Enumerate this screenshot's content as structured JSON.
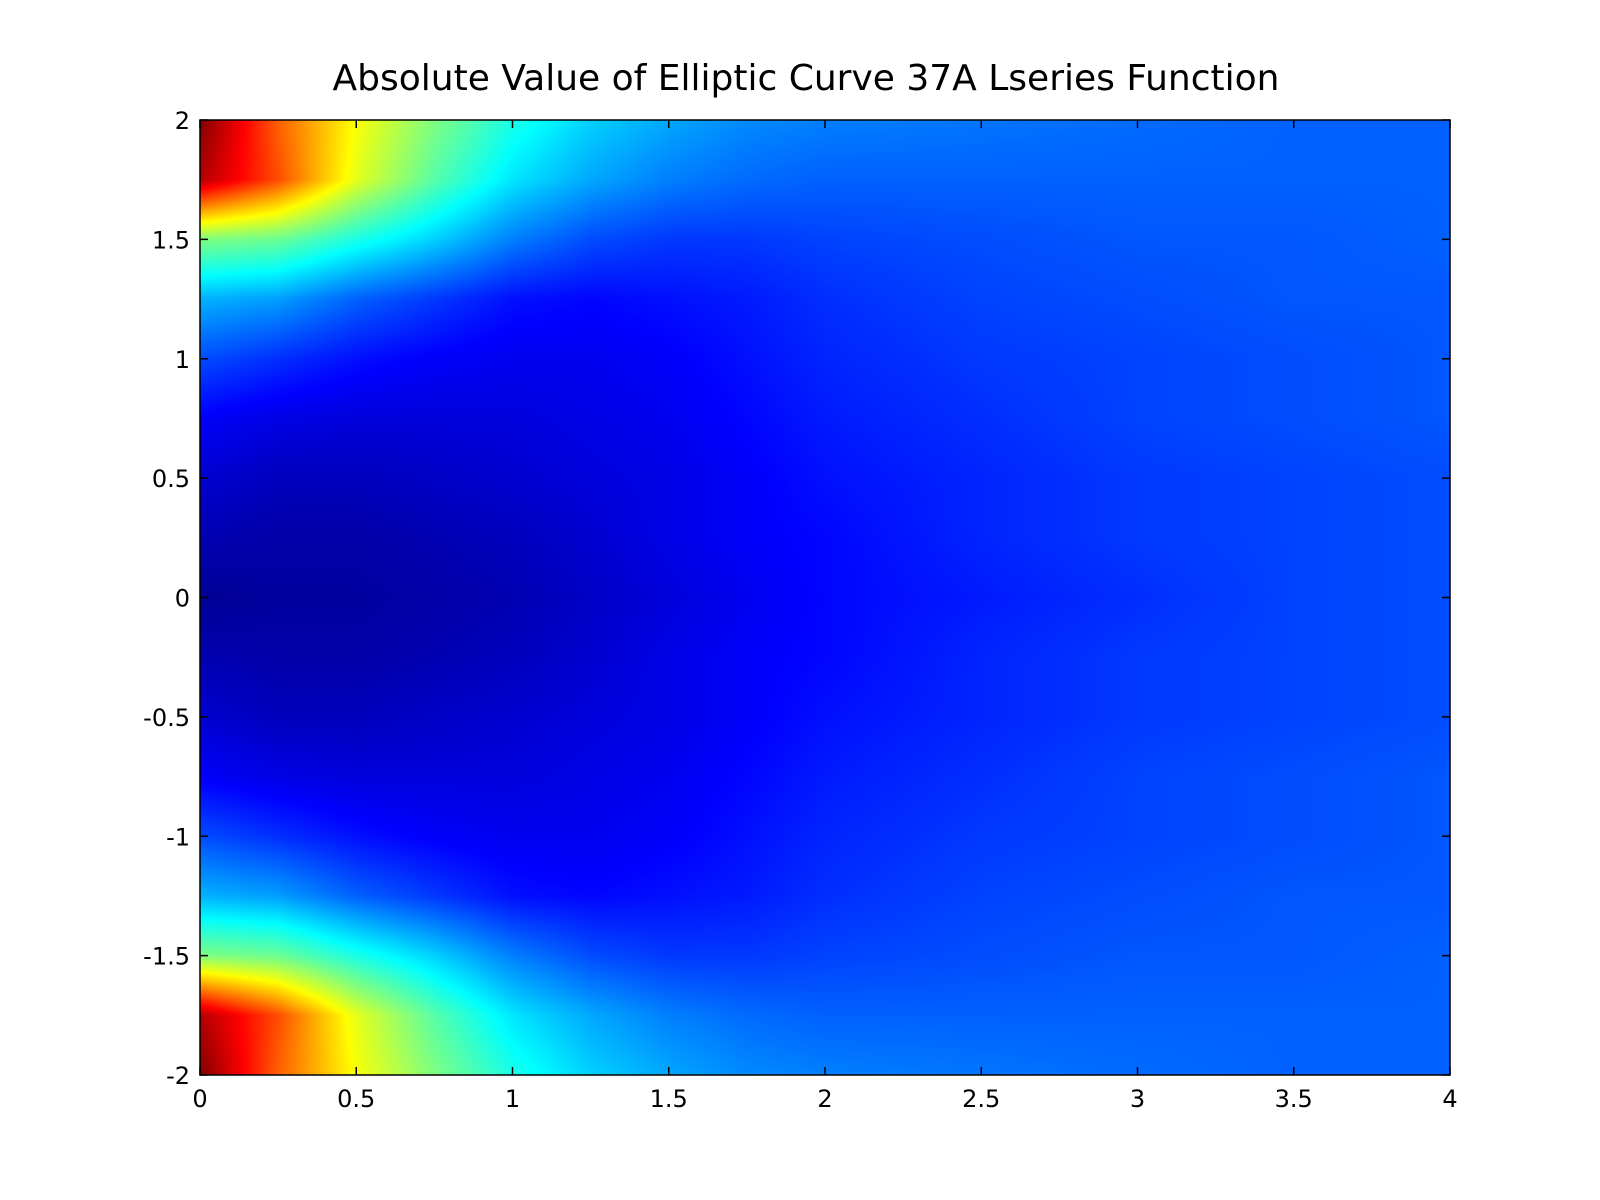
{
  "chart_data": {
    "type": "heatmap",
    "title": "Absolute Value of Elliptic Curve 37A Lseries Function",
    "xlabel": "",
    "ylabel": "",
    "xlim": [
      0,
      4
    ],
    "ylim": [
      -2,
      2
    ],
    "x_ticks": [
      "0",
      "0.5",
      "1",
      "1.5",
      "2",
      "2.5",
      "3",
      "3.5",
      "4"
    ],
    "x_tick_values": [
      0,
      0.5,
      1,
      1.5,
      2,
      2.5,
      3,
      3.5,
      4
    ],
    "y_ticks": [
      "2",
      "1.5",
      "1",
      "0.5",
      "0",
      "-0.5",
      "-1",
      "-1.5",
      "-2"
    ],
    "y_tick_values": [
      2,
      1.5,
      1,
      0.5,
      0,
      -0.5,
      -1,
      -1.5,
      -2
    ],
    "colormap": "jet",
    "grid": false,
    "legend": "none",
    "x": [
      0,
      0.25,
      0.5,
      0.75,
      1,
      1.25,
      1.5,
      1.75,
      2,
      2.5,
      3,
      3.5,
      4
    ],
    "y": [
      2,
      1.75,
      1.5,
      1.25,
      1,
      0.75,
      0.5,
      0.25,
      0,
      -0.25,
      -0.5,
      -0.75,
      -1,
      -1.25,
      -1.5,
      -1.75,
      -2
    ],
    "z_normalized": [
      [
        1.0,
        0.78,
        0.62,
        0.5,
        0.4,
        0.33,
        0.29,
        0.26,
        0.25,
        0.24,
        0.23,
        0.22,
        0.22
      ],
      [
        0.95,
        0.8,
        0.6,
        0.46,
        0.35,
        0.29,
        0.25,
        0.23,
        0.22,
        0.22,
        0.22,
        0.22,
        0.22
      ],
      [
        0.5,
        0.48,
        0.4,
        0.33,
        0.25,
        0.2,
        0.18,
        0.18,
        0.19,
        0.2,
        0.21,
        0.21,
        0.22
      ],
      [
        0.3,
        0.28,
        0.22,
        0.18,
        0.14,
        0.13,
        0.14,
        0.15,
        0.17,
        0.19,
        0.2,
        0.21,
        0.21
      ],
      [
        0.2,
        0.17,
        0.14,
        0.12,
        0.11,
        0.11,
        0.12,
        0.14,
        0.16,
        0.18,
        0.19,
        0.2,
        0.21
      ],
      [
        0.12,
        0.1,
        0.09,
        0.09,
        0.09,
        0.1,
        0.11,
        0.13,
        0.15,
        0.17,
        0.19,
        0.2,
        0.21
      ],
      [
        0.08,
        0.06,
        0.06,
        0.07,
        0.08,
        0.09,
        0.1,
        0.12,
        0.14,
        0.16,
        0.18,
        0.19,
        0.2
      ],
      [
        0.05,
        0.04,
        0.04,
        0.05,
        0.06,
        0.08,
        0.1,
        0.12,
        0.13,
        0.16,
        0.18,
        0.19,
        0.2
      ],
      [
        0.02,
        0.03,
        0.03,
        0.04,
        0.05,
        0.07,
        0.09,
        0.11,
        0.13,
        0.15,
        0.17,
        0.19,
        0.2
      ],
      [
        0.05,
        0.04,
        0.04,
        0.05,
        0.06,
        0.08,
        0.1,
        0.12,
        0.13,
        0.16,
        0.18,
        0.19,
        0.2
      ],
      [
        0.08,
        0.06,
        0.06,
        0.07,
        0.08,
        0.09,
        0.1,
        0.12,
        0.14,
        0.16,
        0.18,
        0.19,
        0.2
      ],
      [
        0.12,
        0.1,
        0.09,
        0.09,
        0.09,
        0.1,
        0.11,
        0.13,
        0.15,
        0.17,
        0.19,
        0.2,
        0.21
      ],
      [
        0.2,
        0.17,
        0.14,
        0.12,
        0.11,
        0.11,
        0.12,
        0.14,
        0.16,
        0.18,
        0.19,
        0.2,
        0.21
      ],
      [
        0.3,
        0.28,
        0.22,
        0.18,
        0.14,
        0.13,
        0.14,
        0.15,
        0.17,
        0.19,
        0.2,
        0.21,
        0.21
      ],
      [
        0.5,
        0.48,
        0.4,
        0.33,
        0.25,
        0.2,
        0.18,
        0.18,
        0.19,
        0.2,
        0.21,
        0.21,
        0.22
      ],
      [
        0.95,
        0.8,
        0.6,
        0.46,
        0.35,
        0.29,
        0.25,
        0.23,
        0.22,
        0.22,
        0.22,
        0.22,
        0.22
      ],
      [
        1.0,
        0.78,
        0.62,
        0.5,
        0.4,
        0.33,
        0.29,
        0.26,
        0.25,
        0.24,
        0.23,
        0.22,
        0.22
      ]
    ]
  }
}
